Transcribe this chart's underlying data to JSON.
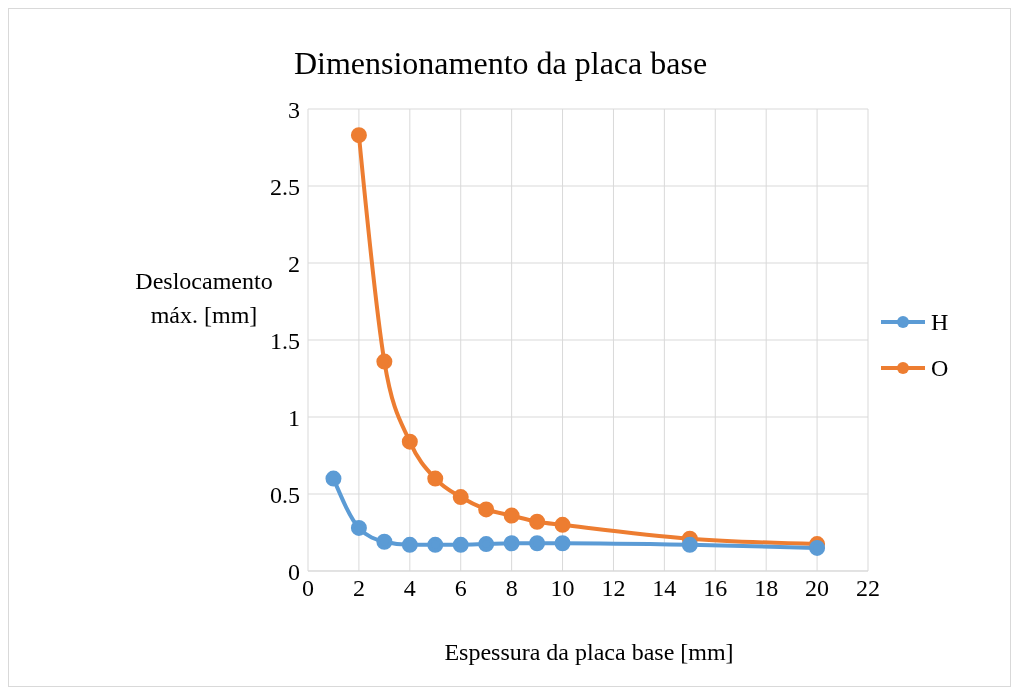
{
  "chart_data": {
    "type": "line",
    "title": "Dimensionamento da placa base",
    "xlabel": "Espessura da placa base [mm]",
    "ylabel": "Deslocamento máx. [mm]",
    "series": [
      {
        "name": "H",
        "color": "#5b9bd5",
        "x": [
          1,
          2,
          3,
          4,
          5,
          6,
          7,
          8,
          9,
          10,
          15,
          20
        ],
        "values": [
          0.6,
          0.28,
          0.19,
          0.17,
          0.17,
          0.17,
          0.175,
          0.18,
          0.18,
          0.18,
          0.17,
          0.15
        ]
      },
      {
        "name": "O",
        "color": "#ed7d31",
        "x": [
          2,
          3,
          4,
          5,
          6,
          7,
          8,
          9,
          10,
          15,
          20
        ],
        "values": [
          2.83,
          1.36,
          0.84,
          0.6,
          0.48,
          0.4,
          0.36,
          0.32,
          0.3,
          0.21,
          0.175
        ]
      }
    ],
    "xlim": [
      0,
      22
    ],
    "xticks": [
      0,
      2,
      4,
      6,
      8,
      10,
      12,
      14,
      16,
      18,
      20,
      22
    ],
    "ylim": [
      0,
      3
    ],
    "yticks": [
      0,
      0.5,
      1,
      1.5,
      2,
      2.5,
      3
    ],
    "grid": true,
    "legend": "right",
    "marker": "circle",
    "line_style": "solid"
  }
}
